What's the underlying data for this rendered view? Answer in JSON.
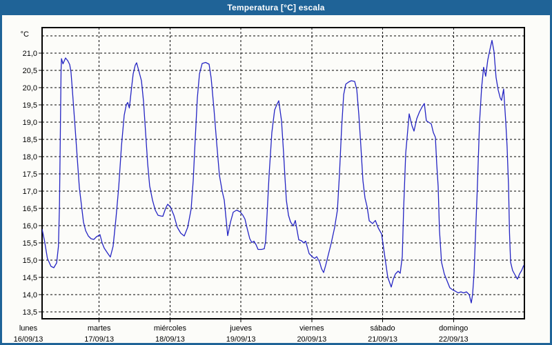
{
  "window": {
    "title": "Temperatura [°C] escala"
  },
  "colors": {
    "titlebar_bg": "#1f6397",
    "frame_border": "#1f6397",
    "canvas_bg": "#fcfcf9",
    "line_color": "#2323c3",
    "grid_color": "#000000"
  },
  "chart_data": {
    "type": "line",
    "title": "Temperatura [°C] escala",
    "legend_position": "none",
    "grid": "dashed",
    "y_axis": {
      "unit": "°C",
      "min": 13.5,
      "max": 21.5,
      "step": 0.5,
      "tick_labels": [
        "21,0",
        "20,5",
        "20,0",
        "19,5",
        "19,0",
        "18,5",
        "18,0",
        "17,5",
        "17,0",
        "16,5",
        "16,0",
        "15,5",
        "15,0",
        "14,5",
        "14,0",
        "13,5"
      ]
    },
    "x_axis": {
      "days": [
        {
          "name": "lunes",
          "date": "16/09/13"
        },
        {
          "name": "martes",
          "date": "17/09/13"
        },
        {
          "name": "miércoles",
          "date": "18/09/13"
        },
        {
          "name": "jueves",
          "date": "19/09/13"
        },
        {
          "name": "viernes",
          "date": "20/09/13"
        },
        {
          "name": "sábado",
          "date": "21/09/13"
        },
        {
          "name": "domingo",
          "date": "22/09/13"
        }
      ]
    },
    "series": [
      {
        "name": "Temperatura",
        "color": "#2323c3",
        "x_unit": "days_since_monday_00h",
        "points": [
          [
            0.195,
            15.9
          ],
          [
            0.23,
            15.55
          ],
          [
            0.27,
            15.05
          ],
          [
            0.32,
            14.82
          ],
          [
            0.36,
            14.78
          ],
          [
            0.4,
            14.92
          ],
          [
            0.425,
            15.4
          ],
          [
            0.44,
            16.6
          ],
          [
            0.452,
            18.6
          ],
          [
            0.462,
            20.5
          ],
          [
            0.468,
            20.84
          ],
          [
            0.49,
            20.69
          ],
          [
            0.526,
            20.86
          ],
          [
            0.557,
            20.78
          ],
          [
            0.584,
            20.67
          ],
          [
            0.603,
            20.45
          ],
          [
            0.623,
            19.9
          ],
          [
            0.662,
            18.8
          ],
          [
            0.691,
            17.95
          ],
          [
            0.72,
            17.1
          ],
          [
            0.75,
            16.6
          ],
          [
            0.779,
            16.1
          ],
          [
            0.81,
            15.85
          ],
          [
            0.847,
            15.7
          ],
          [
            0.886,
            15.62
          ],
          [
            0.925,
            15.6
          ],
          [
            0.964,
            15.68
          ],
          [
            1.0,
            15.72
          ],
          [
            1.012,
            15.74
          ],
          [
            1.042,
            15.5
          ],
          [
            1.071,
            15.35
          ],
          [
            1.12,
            15.2
          ],
          [
            1.158,
            15.09
          ],
          [
            1.197,
            15.4
          ],
          [
            1.236,
            16.2
          ],
          [
            1.275,
            17.1
          ],
          [
            1.314,
            18.3
          ],
          [
            1.353,
            19.2
          ],
          [
            1.382,
            19.5
          ],
          [
            1.402,
            19.57
          ],
          [
            1.426,
            19.41
          ],
          [
            1.455,
            19.95
          ],
          [
            1.48,
            20.4
          ],
          [
            1.509,
            20.65
          ],
          [
            1.529,
            20.72
          ],
          [
            1.558,
            20.5
          ],
          [
            1.597,
            20.2
          ],
          [
            1.626,
            19.6
          ],
          [
            1.655,
            18.7
          ],
          [
            1.684,
            17.8
          ],
          [
            1.713,
            17.15
          ],
          [
            1.752,
            16.74
          ],
          [
            1.791,
            16.45
          ],
          [
            1.83,
            16.3
          ],
          [
            1.869,
            16.28
          ],
          [
            1.898,
            16.27
          ],
          [
            1.937,
            16.5
          ],
          [
            1.967,
            16.62
          ],
          [
            2.006,
            16.54
          ],
          [
            2.054,
            16.3
          ],
          [
            2.103,
            15.95
          ],
          [
            2.152,
            15.78
          ],
          [
            2.2,
            15.7
          ],
          [
            2.249,
            15.95
          ],
          [
            2.298,
            16.48
          ],
          [
            2.327,
            17.3
          ],
          [
            2.356,
            18.54
          ],
          [
            2.385,
            19.7
          ],
          [
            2.415,
            20.4
          ],
          [
            2.453,
            20.7
          ],
          [
            2.502,
            20.73
          ],
          [
            2.551,
            20.68
          ],
          [
            2.58,
            20.28
          ],
          [
            2.619,
            19.4
          ],
          [
            2.658,
            18.4
          ],
          [
            2.697,
            17.46
          ],
          [
            2.736,
            17.0
          ],
          [
            2.765,
            16.74
          ],
          [
            2.814,
            15.71
          ],
          [
            2.853,
            16.1
          ],
          [
            2.892,
            16.39
          ],
          [
            2.94,
            16.45
          ],
          [
            2.989,
            16.4
          ],
          [
            3.028,
            16.3
          ],
          [
            3.057,
            16.19
          ],
          [
            3.09,
            15.9
          ],
          [
            3.125,
            15.62
          ],
          [
            3.154,
            15.51
          ],
          [
            3.184,
            15.55
          ],
          [
            3.213,
            15.45
          ],
          [
            3.242,
            15.31
          ],
          [
            3.291,
            15.31
          ],
          [
            3.33,
            15.33
          ],
          [
            3.349,
            15.55
          ],
          [
            3.369,
            16.3
          ],
          [
            3.398,
            17.47
          ],
          [
            3.437,
            18.7
          ],
          [
            3.476,
            19.35
          ],
          [
            3.505,
            19.5
          ],
          [
            3.534,
            19.62
          ],
          [
            3.573,
            19.04
          ],
          [
            3.602,
            18.1
          ],
          [
            3.622,
            17.39
          ],
          [
            3.641,
            16.74
          ],
          [
            3.671,
            16.3
          ],
          [
            3.7,
            16.11
          ],
          [
            3.739,
            15.99
          ],
          [
            3.768,
            16.15
          ],
          [
            3.816,
            15.59
          ],
          [
            3.855,
            15.56
          ],
          [
            3.885,
            15.5
          ],
          [
            3.914,
            15.55
          ],
          [
            3.962,
            15.19
          ],
          [
            4.011,
            15.09
          ],
          [
            4.04,
            15.05
          ],
          [
            4.07,
            15.1
          ],
          [
            4.109,
            14.95
          ],
          [
            4.138,
            14.75
          ],
          [
            4.167,
            14.64
          ],
          [
            4.196,
            14.85
          ],
          [
            4.225,
            15.09
          ],
          [
            4.274,
            15.49
          ],
          [
            4.323,
            15.95
          ],
          [
            4.362,
            16.45
          ],
          [
            4.391,
            17.5
          ],
          [
            4.42,
            18.8
          ],
          [
            4.45,
            19.8
          ],
          [
            4.479,
            20.1
          ],
          [
            4.518,
            20.16
          ],
          [
            4.557,
            20.2
          ],
          [
            4.605,
            20.18
          ],
          [
            4.635,
            19.94
          ],
          [
            4.664,
            19.2
          ],
          [
            4.693,
            18.3
          ],
          [
            4.722,
            17.3
          ],
          [
            4.751,
            16.8
          ],
          [
            4.781,
            16.54
          ],
          [
            4.81,
            16.14
          ],
          [
            4.858,
            16.06
          ],
          [
            4.897,
            16.15
          ],
          [
            4.936,
            15.94
          ],
          [
            4.985,
            15.76
          ],
          [
            5.033,
            15.06
          ],
          [
            5.072,
            14.5
          ],
          [
            5.121,
            14.22
          ],
          [
            5.15,
            14.45
          ],
          [
            5.18,
            14.6
          ],
          [
            5.218,
            14.68
          ],
          [
            5.248,
            14.62
          ],
          [
            5.277,
            15.1
          ],
          [
            5.296,
            16.5
          ],
          [
            5.325,
            18.1
          ],
          [
            5.374,
            19.24
          ],
          [
            5.413,
            18.9
          ],
          [
            5.442,
            18.74
          ],
          [
            5.481,
            19.1
          ],
          [
            5.52,
            19.3
          ],
          [
            5.559,
            19.45
          ],
          [
            5.588,
            19.54
          ],
          [
            5.617,
            19.04
          ],
          [
            5.647,
            19.0
          ],
          [
            5.686,
            18.95
          ],
          [
            5.715,
            18.7
          ],
          [
            5.744,
            18.56
          ],
          [
            5.763,
            17.8
          ],
          [
            5.783,
            17.14
          ],
          [
            5.802,
            15.87
          ],
          [
            5.831,
            14.94
          ],
          [
            5.87,
            14.6
          ],
          [
            5.909,
            14.4
          ],
          [
            5.948,
            14.2
          ],
          [
            5.987,
            14.14
          ],
          [
            6.026,
            14.1
          ],
          [
            6.065,
            14.05
          ],
          [
            6.104,
            14.08
          ],
          [
            6.143,
            14.05
          ],
          [
            6.182,
            14.08
          ],
          [
            6.221,
            14.0
          ],
          [
            6.25,
            13.76
          ],
          [
            6.269,
            14.0
          ],
          [
            6.289,
            14.6
          ],
          [
            6.308,
            15.6
          ],
          [
            6.337,
            17.16
          ],
          [
            6.367,
            19.0
          ],
          [
            6.396,
            20.0
          ],
          [
            6.425,
            20.59
          ],
          [
            6.454,
            20.33
          ],
          [
            6.483,
            20.8
          ],
          [
            6.513,
            21.1
          ],
          [
            6.542,
            21.37
          ],
          [
            6.571,
            21.05
          ],
          [
            6.6,
            20.3
          ],
          [
            6.63,
            19.93
          ],
          [
            6.659,
            19.7
          ],
          [
            6.678,
            19.63
          ],
          [
            6.707,
            19.96
          ],
          [
            6.737,
            19.0
          ],
          [
            6.756,
            18.3
          ],
          [
            6.776,
            17.16
          ],
          [
            6.79,
            15.8
          ],
          [
            6.805,
            14.94
          ],
          [
            6.834,
            14.7
          ],
          [
            6.873,
            14.55
          ],
          [
            6.902,
            14.45
          ],
          [
            6.932,
            14.6
          ],
          [
            6.961,
            14.7
          ],
          [
            6.99,
            14.85
          ]
        ]
      }
    ],
    "x_range_days": [
      0.195,
      7.0
    ],
    "y_range": [
      13.3,
      21.74
    ]
  }
}
